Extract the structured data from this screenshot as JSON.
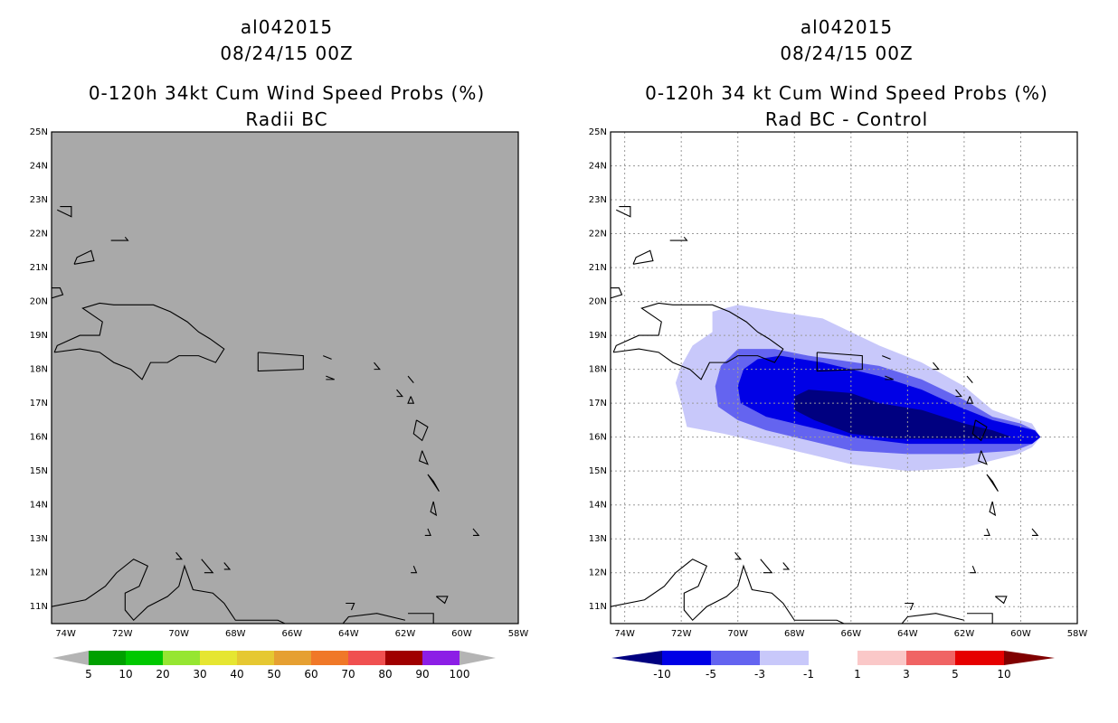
{
  "charts": [
    {
      "id": "left",
      "storm_id": "al042015",
      "datetime": "08/24/15 00Z",
      "title": "0-120h 34kt Cum Wind Speed Probs (%)",
      "subtitle": "Radii BC",
      "background_color": "#a9a9a9",
      "colorbar_labels": [
        "5",
        "10",
        "20",
        "30",
        "40",
        "50",
        "60",
        "70",
        "80",
        "90",
        "100"
      ],
      "colorbar_colors": [
        "#00a000",
        "#00c800",
        "#00e800",
        "#a0e632",
        "#e6e632",
        "#e6c832",
        "#e6a032",
        "#f07828",
        "#f05050",
        "#a00000",
        "#a00000",
        "#8c1ee6",
        "#b4b4b4"
      ]
    },
    {
      "id": "right",
      "storm_id": "al042015",
      "datetime": "08/24/15 00Z",
      "title": "0-120h 34 kt Cum Wind Speed Probs (%)",
      "subtitle": "Rad BC - Control",
      "background_color": "#ffffff",
      "colorbar_labels": [
        "-10",
        "-5",
        "-3",
        "-1",
        "1",
        "3",
        "5",
        "10"
      ],
      "colorbar_colors": [
        "#000080",
        "#0000e6",
        "#6464f0",
        "#c8c8fa",
        "#ffffff",
        "#fac8c8",
        "#f06464",
        "#e60000",
        "#800000"
      ]
    }
  ],
  "chart_data": [
    {
      "type": "heatmap",
      "title": "0-120h 34kt Cum Wind Speed Probs (%)",
      "subtitle": "Radii BC",
      "xlabel": "",
      "ylabel": "",
      "xlim": [
        -74.5,
        -58
      ],
      "ylim": [
        10.5,
        25
      ],
      "x_ticks": [
        "74W",
        "72W",
        "70W",
        "68W",
        "66W",
        "64W",
        "62W",
        "60W",
        "58W"
      ],
      "y_ticks": [
        "11N",
        "12N",
        "13N",
        "14N",
        "15N",
        "16N",
        "17N",
        "18N",
        "19N",
        "20N",
        "21N",
        "22N",
        "23N",
        "24N",
        "25N"
      ],
      "levels": [
        5,
        10,
        20,
        30,
        40,
        50,
        60,
        70,
        80,
        90,
        100
      ],
      "fill": "uniform gray (no probability contours)",
      "grid": false
    },
    {
      "type": "heatmap",
      "title": "0-120h 34 kt Cum Wind Speed Probs (%)",
      "subtitle": "Rad BC - Control",
      "xlabel": "",
      "ylabel": "",
      "xlim": [
        -74.5,
        -58
      ],
      "ylim": [
        10.5,
        25
      ],
      "x_ticks": [
        "74W",
        "72W",
        "70W",
        "68W",
        "66W",
        "64W",
        "62W",
        "60W",
        "58W"
      ],
      "y_ticks": [
        "11N",
        "12N",
        "13N",
        "14N",
        "15N",
        "16N",
        "17N",
        "18N",
        "19N",
        "20N",
        "21N",
        "22N",
        "23N",
        "24N",
        "25N"
      ],
      "levels": [
        -10,
        -5,
        -3,
        -1,
        1,
        3,
        5,
        10
      ],
      "grid": true,
      "contours": [
        {
          "level": "-1 to -3",
          "color": "#c8c8fa",
          "polygon": [
            [
              -71.8,
              16.3
            ],
            [
              -72.0,
              17.0
            ],
            [
              -72.2,
              17.6
            ],
            [
              -72.0,
              18.1
            ],
            [
              -71.6,
              18.7
            ],
            [
              -70.9,
              19.1
            ],
            [
              -70.9,
              19.7
            ],
            [
              -70.0,
              19.9
            ],
            [
              -68.6,
              19.7
            ],
            [
              -67.0,
              19.5
            ],
            [
              -65.0,
              18.7
            ],
            [
              -63.5,
              18.2
            ],
            [
              -62.0,
              17.5
            ],
            [
              -61.0,
              16.8
            ],
            [
              -60.0,
              16.5
            ],
            [
              -59.6,
              16.4
            ],
            [
              -59.3,
              16.0
            ],
            [
              -59.6,
              15.7
            ],
            [
              -60.1,
              15.5
            ],
            [
              -62.0,
              15.1
            ],
            [
              -64.0,
              15.0
            ],
            [
              -66.0,
              15.2
            ],
            [
              -67.5,
              15.5
            ],
            [
              -69.0,
              15.8
            ],
            [
              -70.5,
              16.1
            ]
          ]
        },
        {
          "level": "-3 to -5",
          "color": "#6464f0",
          "polygon": [
            [
              -70.7,
              16.9
            ],
            [
              -70.8,
              17.5
            ],
            [
              -70.6,
              18.1
            ],
            [
              -70.0,
              18.6
            ],
            [
              -68.7,
              18.6
            ],
            [
              -67.5,
              18.4
            ],
            [
              -65.0,
              18.1
            ],
            [
              -63.5,
              17.7
            ],
            [
              -62.0,
              17.1
            ],
            [
              -61.0,
              16.6
            ],
            [
              -60.0,
              16.4
            ],
            [
              -59.5,
              16.2
            ],
            [
              -59.3,
              16.0
            ],
            [
              -59.6,
              15.8
            ],
            [
              -60.2,
              15.6
            ],
            [
              -62.0,
              15.5
            ],
            [
              -64.0,
              15.5
            ],
            [
              -66.0,
              15.6
            ],
            [
              -67.5,
              15.9
            ],
            [
              -69.0,
              16.2
            ],
            [
              -70.0,
              16.5
            ]
          ]
        },
        {
          "level": "-5 to -10",
          "color": "#0000e6",
          "polygon": [
            [
              -69.9,
              17.0
            ],
            [
              -70.0,
              17.5
            ],
            [
              -69.8,
              18.0
            ],
            [
              -69.3,
              18.3
            ],
            [
              -68.5,
              18.4
            ],
            [
              -67.0,
              18.2
            ],
            [
              -65.0,
              17.8
            ],
            [
              -63.5,
              17.4
            ],
            [
              -62.2,
              16.9
            ],
            [
              -61.0,
              16.5
            ],
            [
              -60.0,
              16.3
            ],
            [
              -59.5,
              16.2
            ],
            [
              -59.3,
              16.0
            ],
            [
              -59.6,
              15.8
            ],
            [
              -60.3,
              15.8
            ],
            [
              -62.0,
              15.8
            ],
            [
              -64.0,
              15.8
            ],
            [
              -66.0,
              16.0
            ],
            [
              -67.5,
              16.3
            ],
            [
              -69.0,
              16.6
            ]
          ]
        },
        {
          "level": "< -10",
          "color": "#000080",
          "polygon": [
            [
              -68.0,
              17.2
            ],
            [
              -67.5,
              17.4
            ],
            [
              -66.0,
              17.3
            ],
            [
              -65.0,
              17.0
            ],
            [
              -63.5,
              16.8
            ],
            [
              -62.0,
              16.4
            ],
            [
              -61.0,
              16.2
            ],
            [
              -60.3,
              16.0
            ],
            [
              -61.0,
              15.95
            ],
            [
              -62.5,
              15.95
            ],
            [
              -64.5,
              15.95
            ],
            [
              -66.0,
              16.1
            ],
            [
              -67.3,
              16.5
            ],
            [
              -68.0,
              16.8
            ]
          ]
        }
      ]
    }
  ]
}
